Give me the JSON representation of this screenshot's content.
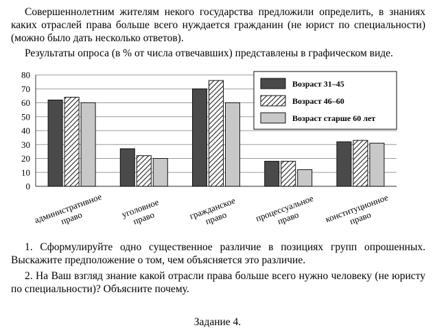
{
  "intro": {
    "p1": "Совершеннолетним жителям некого государства предложили определить, в знаниях каких отраслей права больше всего нуждается гражданин (не юрист по специальности) (можно было дать несколько ответов).",
    "p2": "Результаты опроса (в % от числа отвечавших) представлены в графическом виде."
  },
  "chart_data": {
    "type": "bar",
    "categories": [
      [
        "административное",
        "право"
      ],
      [
        "уголовное",
        "право"
      ],
      [
        "гражданское",
        "право"
      ],
      [
        "процессуальное",
        "право"
      ],
      [
        "конституционное",
        "право"
      ]
    ],
    "series": [
      {
        "name": "Возраст 31–45",
        "values": [
          62,
          27,
          70,
          18,
          32
        ],
        "fill": "#4a4a4a"
      },
      {
        "name": "Возраст 46–60",
        "values": [
          64,
          22,
          76,
          18,
          33
        ],
        "fill": "hatch"
      },
      {
        "name": "Возраст старше 60 лет",
        "values": [
          60,
          20,
          60,
          12,
          31
        ],
        "fill": "#c8c8c8"
      }
    ],
    "ylim": [
      0,
      80
    ],
    "yticks": [
      0,
      10,
      20,
      30,
      40,
      50,
      60,
      70,
      80
    ],
    "grid": true,
    "legend": "top-right"
  },
  "questions": {
    "q1": "1. Сформулируйте одно существенное различие в позициях групп опрошенных. Выскажите предположение о том, чем объясняется это различие.",
    "q2": "2. На Ваш взгляд знание какой отрасли права больше всего нужно человеку (не юристу по специальности)? Объясните почему."
  },
  "footer": "Задание 4."
}
